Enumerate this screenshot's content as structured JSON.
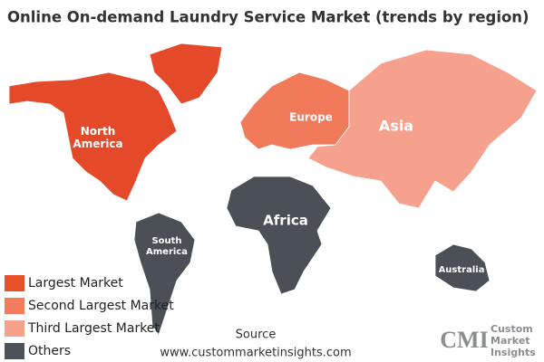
{
  "title": "Online On-demand Laundry Service Market (trends by region)",
  "regions": [
    {
      "label": "North America",
      "color": "#e4492a"
    },
    {
      "label": "Europe",
      "color": "#f07a5a"
    },
    {
      "label": "Asia",
      "color": "#f5a18d"
    },
    {
      "label": "Africa",
      "color": "#4b4f56"
    },
    {
      "label": "South America",
      "color": "#4b4f56"
    },
    {
      "label": "Australia",
      "color": "#4b4f56"
    }
  ],
  "legend": [
    {
      "label": "Largest Market",
      "color": "#e8502a"
    },
    {
      "label": "Second Largest Market",
      "color": "#f27c5c"
    },
    {
      "label": "Third Largest Market",
      "color": "#f5a18c"
    },
    {
      "label": "Others",
      "color": "#4d5158"
    }
  ],
  "source": {
    "heading": "Source",
    "url": "www.custommarketinsights.com"
  },
  "logo": {
    "mark": "CMI",
    "lines": [
      "Custom",
      "Market",
      "Insights"
    ]
  }
}
